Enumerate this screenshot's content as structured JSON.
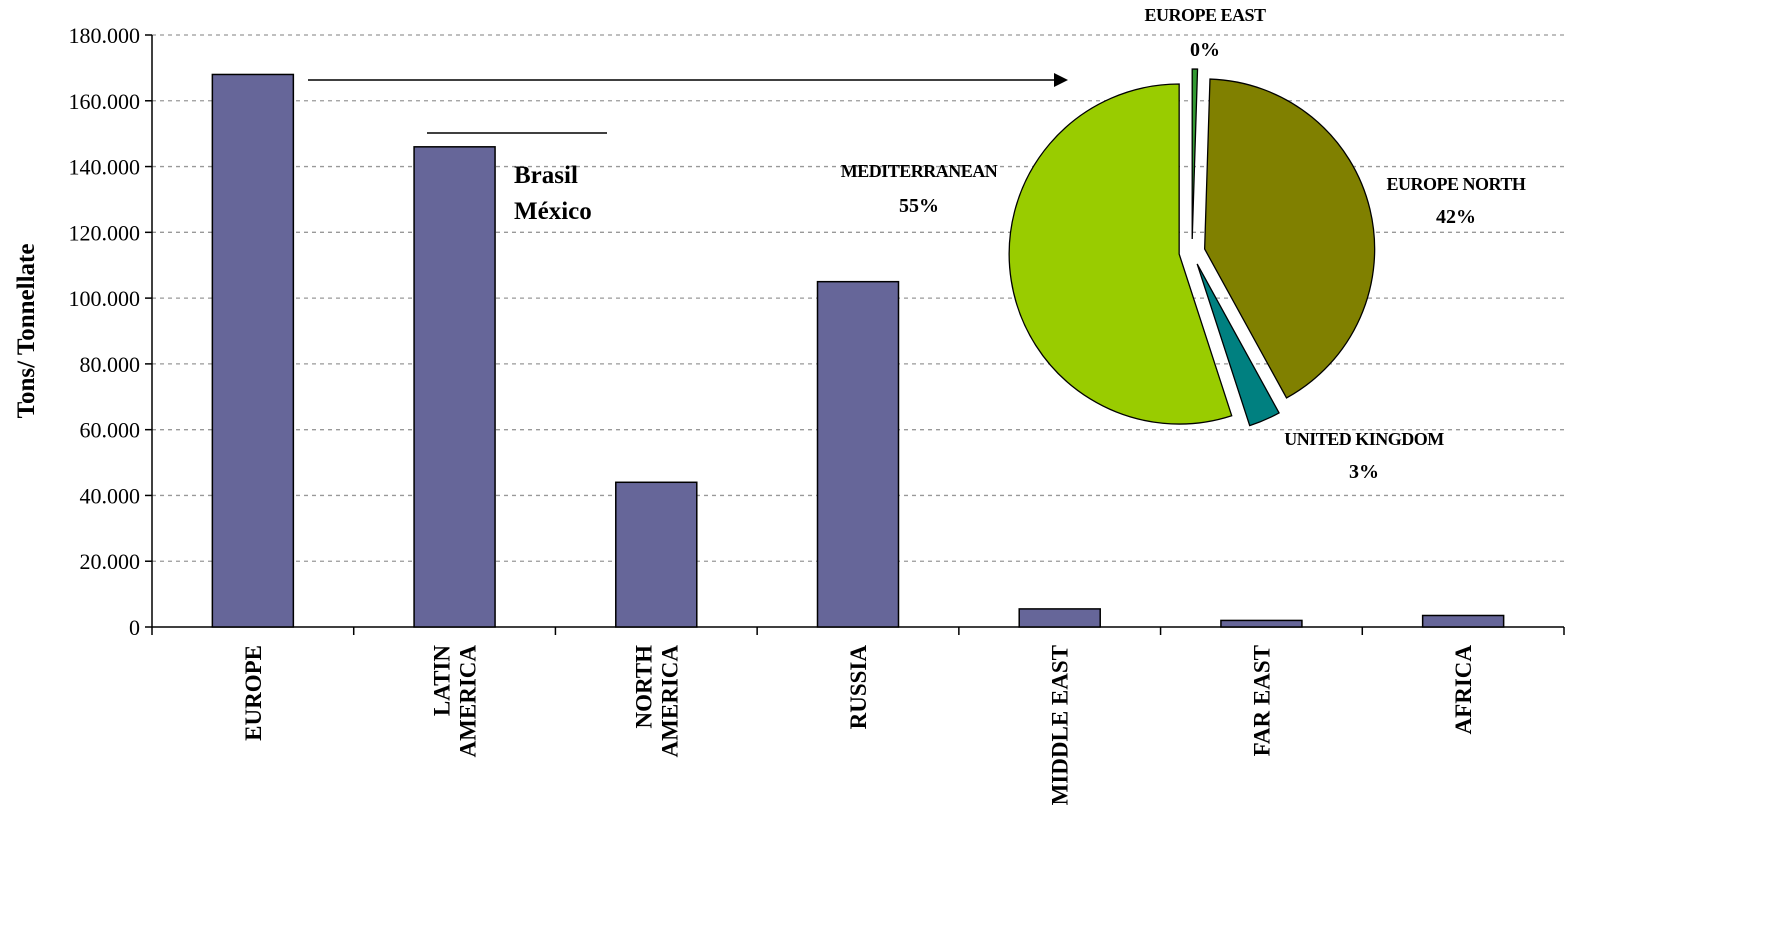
{
  "chart_data": [
    {
      "type": "bar",
      "categories": [
        [
          "EUROPE"
        ],
        [
          "LATIN",
          "AMERICA"
        ],
        [
          "NORTH",
          "AMERICA"
        ],
        [
          "RUSSIA"
        ],
        [
          "MIDDLE EAST"
        ],
        [
          "FAR EAST"
        ],
        [
          "AFRICA"
        ]
      ],
      "values": [
        168000,
        146000,
        44000,
        105000,
        5500,
        2000,
        3500
      ],
      "ylabel": "Tons/ Tonnellate",
      "ylim": [
        0,
        180000
      ],
      "yticks": [
        0,
        20000,
        40000,
        60000,
        80000,
        100000,
        120000,
        140000,
        160000,
        180000
      ],
      "ytick_labels": [
        "0",
        "20.000",
        "40.000",
        "60.000",
        "80.000",
        "100.000",
        "120.000",
        "140.000",
        "160.000",
        "180.000"
      ],
      "grid": true,
      "colors": {
        "bar": "#666699",
        "bar_edge": "#000000",
        "grid": "#999999"
      },
      "annotations": {
        "latin_america_detail": [
          "Brasil",
          "México"
        ]
      }
    },
    {
      "type": "pie",
      "subject": "EUROPE",
      "slices": [
        {
          "label": "EUROPE EAST",
          "pct_label": "0%",
          "value": 0.5,
          "color": "#339933"
        },
        {
          "label": "EUROPE NORTH",
          "pct_label": "42%",
          "value": 41.5,
          "color": "#808000"
        },
        {
          "label": "UNITED KINGDOM",
          "pct_label": "3%",
          "value": 3,
          "color": "#008080"
        },
        {
          "label": "MEDITERRANEAN",
          "pct_label": "55%",
          "value": 55,
          "color": "#99CC00"
        }
      ],
      "exploded": true
    }
  ]
}
